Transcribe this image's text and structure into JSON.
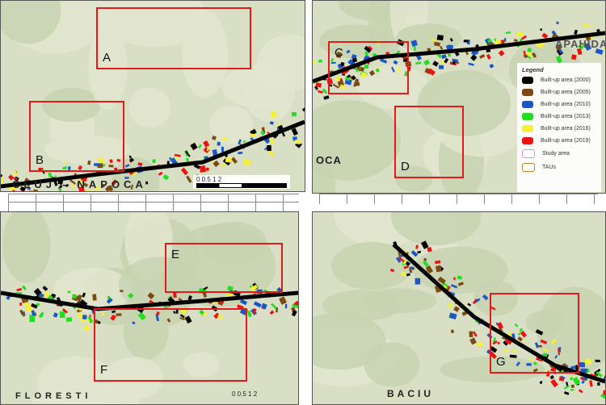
{
  "panels": [
    {
      "town": "CLUJ - NAPOCA",
      "boxes": [
        "A",
        "B"
      ]
    },
    {
      "town": "APAHIDA",
      "town2": "OCA",
      "boxes": [
        "C",
        "D"
      ]
    },
    {
      "town": "FLORESTI",
      "boxes": [
        "E",
        "F"
      ]
    },
    {
      "town": "BACIU",
      "boxes": [
        "G"
      ]
    }
  ],
  "scale": {
    "labels": "0  0.5  1        2",
    "unit": "Km"
  },
  "legend": {
    "title": "Legend",
    "items": [
      {
        "label": "Built-up area (2000)",
        "color": "#000000"
      },
      {
        "label": "Built-up area (2005)",
        "color": "#7a4a12"
      },
      {
        "label": "Built-up area (2010)",
        "color": "#1a56c8"
      },
      {
        "label": "Built-up area (2013)",
        "color": "#22dd22"
      },
      {
        "label": "Built-up area (2016)",
        "color": "#f4f03a"
      },
      {
        "label": "Built-up area (2019)",
        "color": "#ee1111"
      },
      {
        "label": "Study area",
        "color": "#f08cc8"
      },
      {
        "label": "TAUs",
        "color": "#b8862a"
      }
    ]
  },
  "box_color": "#e3191c"
}
